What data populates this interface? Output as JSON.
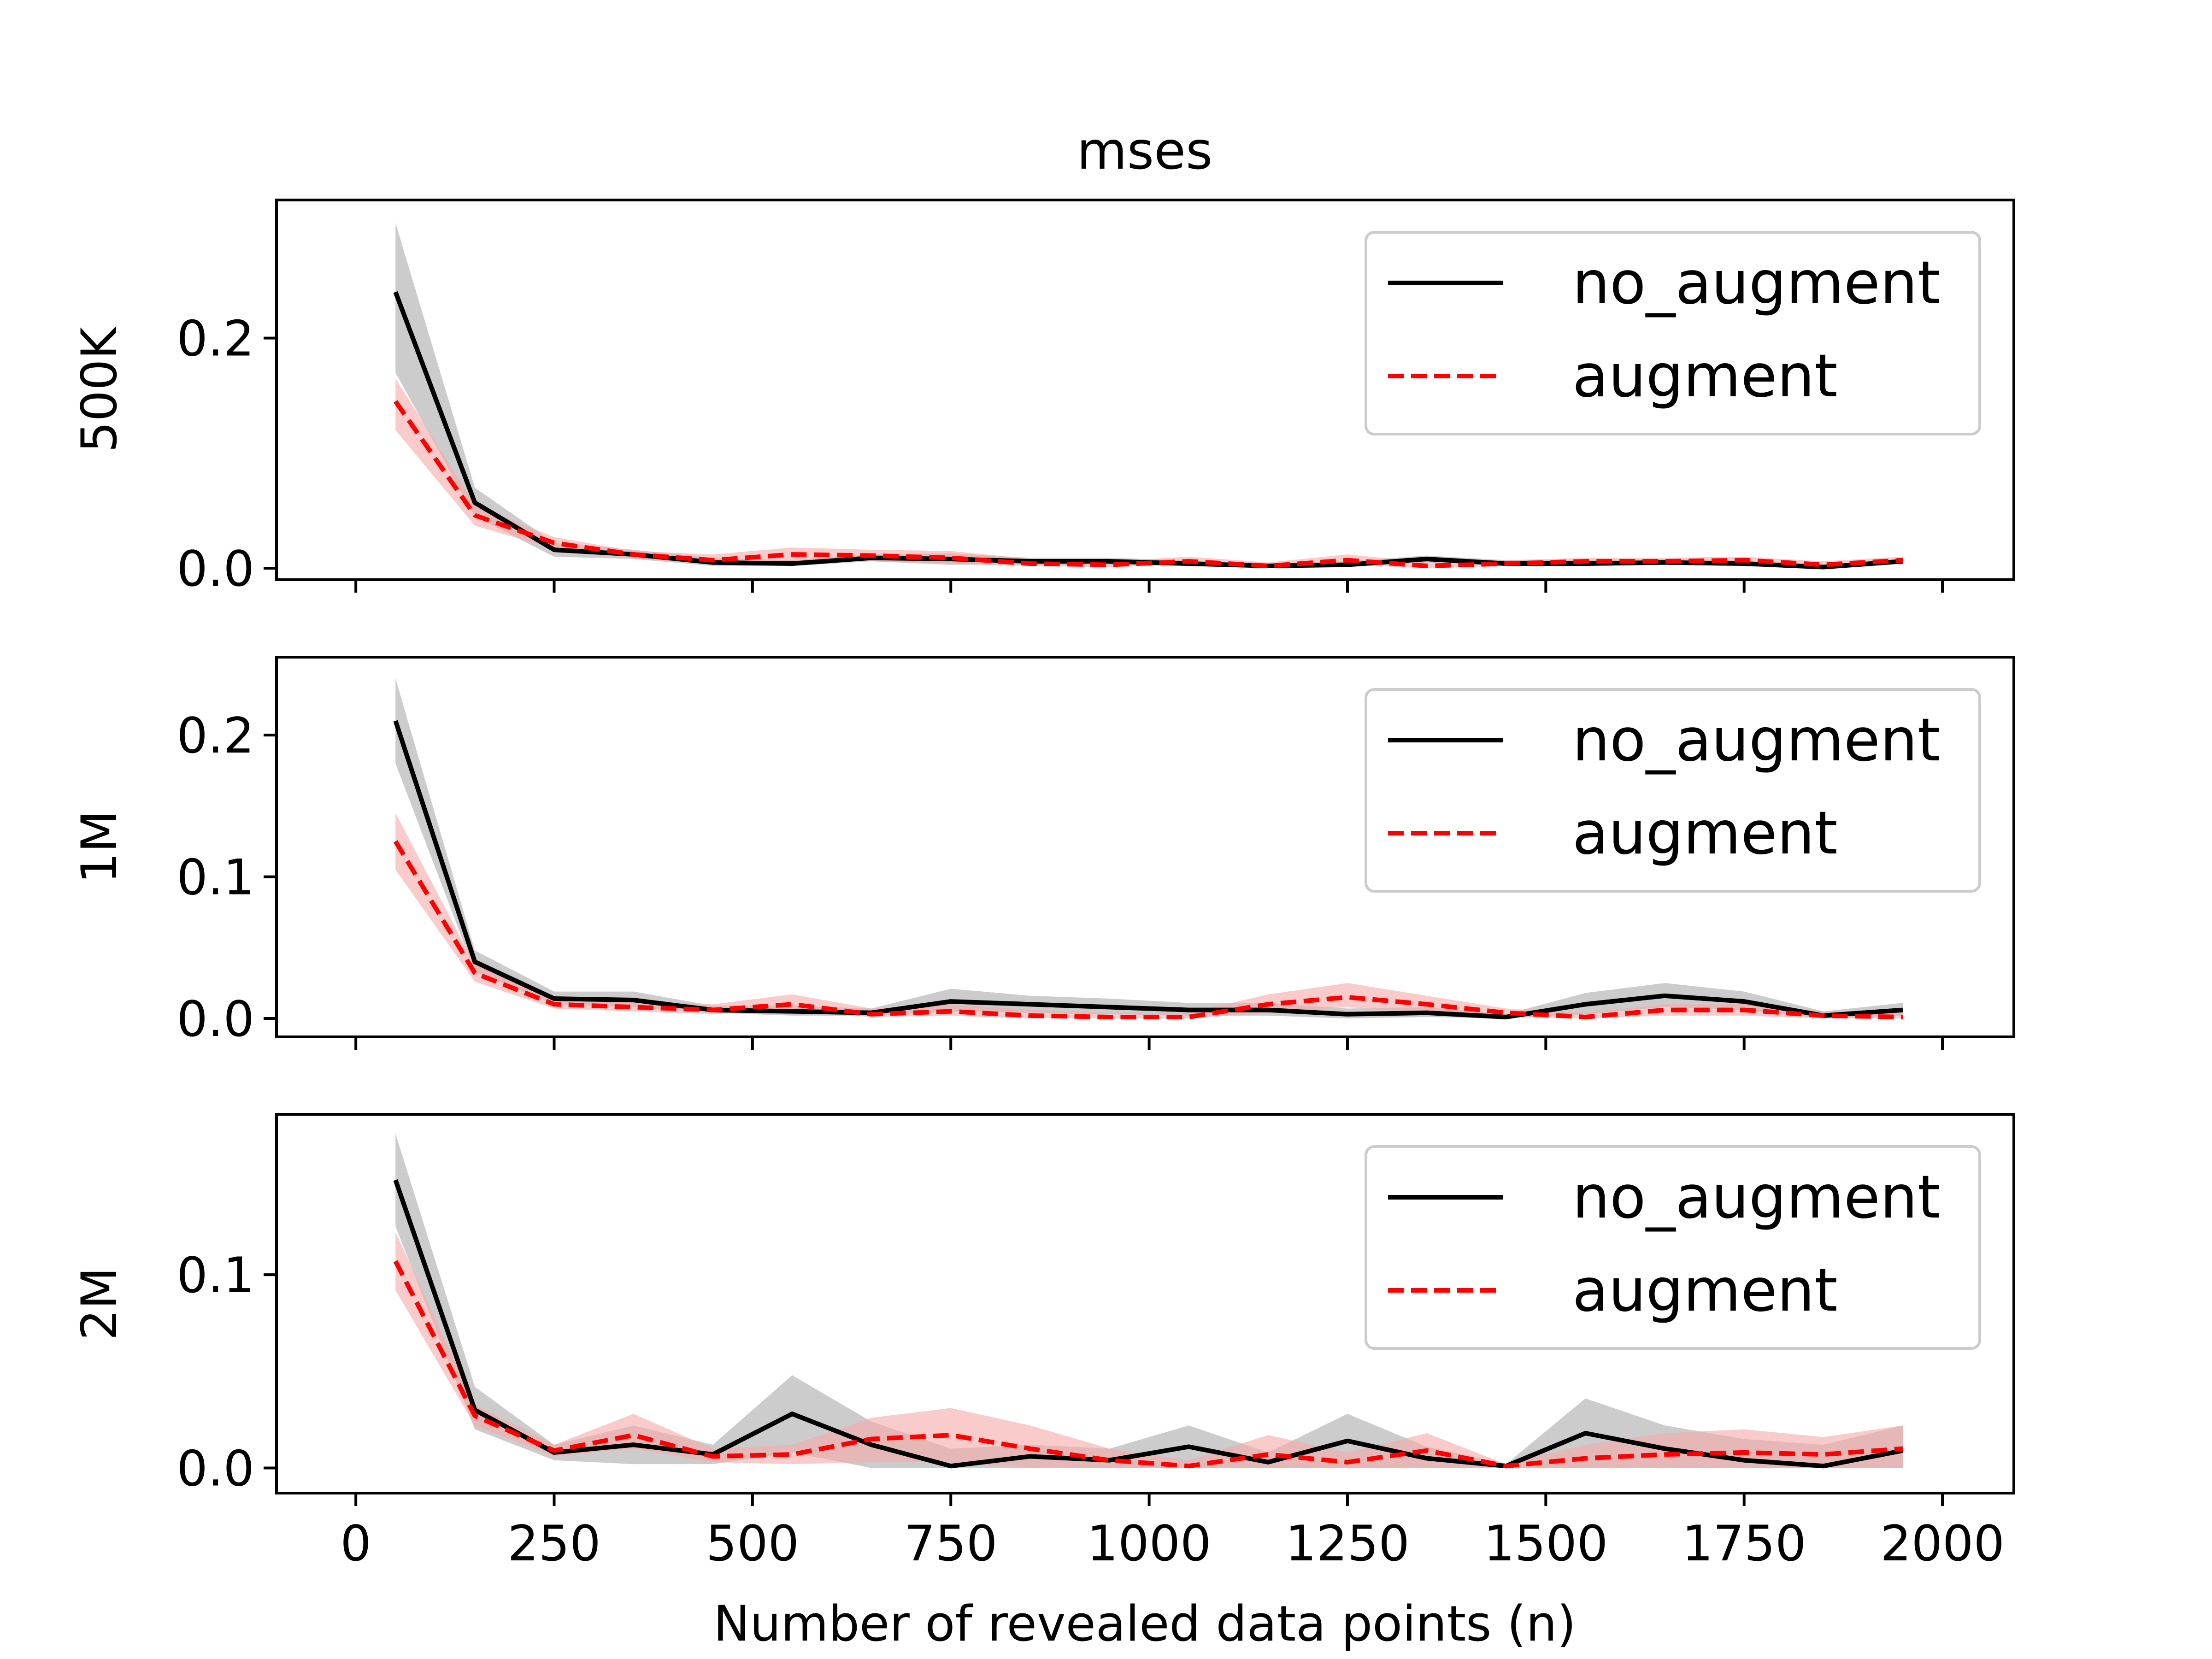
{
  "chart_data": {
    "type": "line",
    "title": "mses",
    "xlabel": "Number of revealed data points (n)",
    "x": [
      50,
      150,
      250,
      350,
      450,
      550,
      650,
      750,
      850,
      950,
      1050,
      1150,
      1250,
      1350,
      1450,
      1550,
      1650,
      1750,
      1850,
      1950
    ],
    "xlim": [
      -100,
      2090
    ],
    "xticks": [
      0,
      250,
      500,
      750,
      1000,
      1250,
      1500,
      1750,
      2000
    ],
    "series_colors": {
      "no_augment": "#000000",
      "augment": "#ff0000"
    },
    "band_colors": {
      "no_augment": "#bfbfbf",
      "augment": "#f7a8a8"
    },
    "legend": {
      "position": "upper right",
      "entries": [
        "no_augment",
        "augment"
      ]
    },
    "grid": false,
    "panels": [
      {
        "ylabel": "500K",
        "ylim": [
          -0.01,
          0.32
        ],
        "yticks": [
          0.0,
          0.2
        ],
        "ytick_labels": [
          "0.0",
          "0.2"
        ],
        "series": [
          {
            "name": "no_augment",
            "style": "solid",
            "values": [
              0.24,
              0.057,
              0.016,
              0.012,
              0.005,
              0.004,
              0.009,
              0.008,
              0.006,
              0.006,
              0.004,
              0.002,
              0.003,
              0.008,
              0.004,
              0.004,
              0.005,
              0.004,
              0.001,
              0.006
            ],
            "lower": [
              0.17,
              0.045,
              0.01,
              0.008,
              0.002,
              0.002,
              0.006,
              0.003,
              0.003,
              0.003,
              0.002,
              0.001,
              0.001,
              0.005,
              0.002,
              0.002,
              0.003,
              0.002,
              0.0,
              0.004
            ],
            "upper": [
              0.3,
              0.07,
              0.022,
              0.016,
              0.009,
              0.007,
              0.012,
              0.013,
              0.009,
              0.009,
              0.007,
              0.004,
              0.006,
              0.011,
              0.007,
              0.007,
              0.008,
              0.007,
              0.003,
              0.008
            ]
          },
          {
            "name": "augment",
            "style": "dashed",
            "values": [
              0.145,
              0.046,
              0.022,
              0.012,
              0.007,
              0.012,
              0.011,
              0.009,
              0.004,
              0.003,
              0.006,
              0.002,
              0.007,
              0.002,
              0.004,
              0.006,
              0.006,
              0.007,
              0.003,
              0.007
            ],
            "lower": [
              0.12,
              0.037,
              0.017,
              0.009,
              0.004,
              0.006,
              0.006,
              0.004,
              0.002,
              0.001,
              0.003,
              0.0,
              0.003,
              0.0,
              0.002,
              0.003,
              0.003,
              0.004,
              0.001,
              0.004
            ],
            "upper": [
              0.165,
              0.055,
              0.027,
              0.015,
              0.012,
              0.018,
              0.016,
              0.015,
              0.008,
              0.006,
              0.01,
              0.005,
              0.012,
              0.005,
              0.007,
              0.009,
              0.009,
              0.01,
              0.006,
              0.01
            ]
          }
        ]
      },
      {
        "ylabel": "1M",
        "ylim": [
          -0.013,
          0.255
        ],
        "yticks": [
          0.0,
          0.1,
          0.2
        ],
        "ytick_labels": [
          "0.0",
          "0.1",
          "0.2"
        ],
        "series": [
          {
            "name": "no_augment",
            "style": "solid",
            "values": [
              0.21,
              0.04,
              0.014,
              0.013,
              0.006,
              0.005,
              0.004,
              0.012,
              0.01,
              0.008,
              0.006,
              0.006,
              0.003,
              0.004,
              0.001,
              0.01,
              0.016,
              0.012,
              0.002,
              0.006
            ],
            "lower": [
              0.18,
              0.033,
              0.01,
              0.008,
              0.004,
              0.002,
              0.002,
              0.005,
              0.004,
              0.003,
              0.002,
              0.002,
              0.0,
              0.001,
              0.0,
              0.003,
              0.008,
              0.006,
              0.0,
              0.002
            ],
            "upper": [
              0.24,
              0.048,
              0.019,
              0.019,
              0.009,
              0.009,
              0.007,
              0.021,
              0.016,
              0.014,
              0.011,
              0.011,
              0.007,
              0.008,
              0.003,
              0.018,
              0.025,
              0.019,
              0.005,
              0.011
            ]
          },
          {
            "name": "augment",
            "style": "dashed",
            "values": [
              0.125,
              0.032,
              0.01,
              0.008,
              0.006,
              0.01,
              0.003,
              0.005,
              0.002,
              0.001,
              0.001,
              0.01,
              0.015,
              0.01,
              0.004,
              0.001,
              0.006,
              0.006,
              0.002,
              0.001
            ],
            "lower": [
              0.105,
              0.026,
              0.007,
              0.005,
              0.003,
              0.005,
              0.001,
              0.002,
              0.0,
              0.0,
              0.0,
              0.004,
              0.008,
              0.004,
              0.001,
              0.0,
              0.002,
              0.002,
              0.0,
              0.0
            ],
            "upper": [
              0.145,
              0.038,
              0.014,
              0.012,
              0.01,
              0.017,
              0.007,
              0.01,
              0.006,
              0.004,
              0.004,
              0.017,
              0.025,
              0.016,
              0.007,
              0.004,
              0.01,
              0.01,
              0.005,
              0.004
            ]
          }
        ]
      },
      {
        "ylabel": "2M",
        "ylim": [
          -0.013,
          0.183
        ],
        "yticks": [
          0.0,
          0.1
        ],
        "ytick_labels": [
          "0.0",
          "0.1"
        ],
        "series": [
          {
            "name": "no_augment",
            "style": "solid",
            "values": [
              0.149,
              0.03,
              0.008,
              0.012,
              0.007,
              0.028,
              0.012,
              0.001,
              0.006,
              0.004,
              0.011,
              0.003,
              0.014,
              0.005,
              0.001,
              0.018,
              0.01,
              0.004,
              0.001,
              0.009
            ],
            "lower": [
              0.125,
              0.02,
              0.004,
              0.002,
              0.002,
              0.008,
              0.0,
              0.0,
              0.0,
              0.0,
              0.0,
              0.0,
              0.0,
              0.0,
              0.0,
              0.0,
              0.0,
              0.0,
              0.0,
              0.0
            ],
            "upper": [
              0.173,
              0.042,
              0.012,
              0.022,
              0.012,
              0.048,
              0.024,
              0.01,
              0.012,
              0.01,
              0.022,
              0.008,
              0.028,
              0.011,
              0.002,
              0.036,
              0.022,
              0.015,
              0.012,
              0.022
            ]
          },
          {
            "name": "augment",
            "style": "dashed",
            "values": [
              0.107,
              0.027,
              0.009,
              0.017,
              0.006,
              0.007,
              0.015,
              0.017,
              0.01,
              0.004,
              0.001,
              0.007,
              0.003,
              0.009,
              0.001,
              0.005,
              0.007,
              0.008,
              0.007,
              0.01
            ],
            "lower": [
              0.092,
              0.022,
              0.006,
              0.01,
              0.003,
              0.002,
              0.003,
              0.003,
              0.0,
              0.0,
              0.0,
              0.0,
              0.0,
              0.0,
              0.0,
              0.0,
              0.0,
              0.0,
              0.0,
              0.0
            ],
            "upper": [
              0.122,
              0.033,
              0.012,
              0.028,
              0.01,
              0.012,
              0.026,
              0.031,
              0.022,
              0.01,
              0.004,
              0.017,
              0.008,
              0.018,
              0.002,
              0.012,
              0.018,
              0.02,
              0.016,
              0.022
            ]
          }
        ]
      }
    ]
  }
}
